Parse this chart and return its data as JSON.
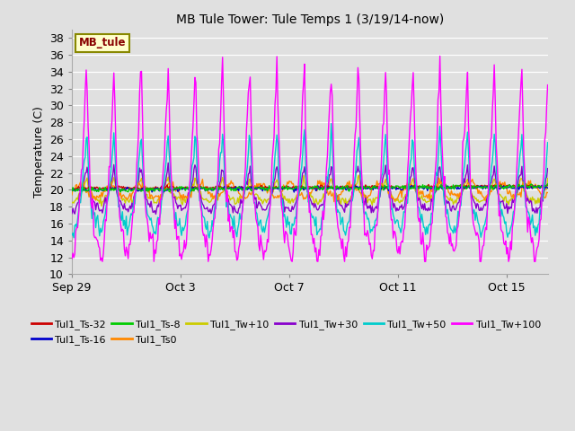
{
  "title": "MB Tule Tower: Tule Temps 1 (3/19/14-now)",
  "ylabel": "Temperature (C)",
  "background_color": "#e0e0e0",
  "ylim": [
    10,
    39
  ],
  "yticks": [
    10,
    12,
    14,
    16,
    18,
    20,
    22,
    24,
    26,
    28,
    30,
    32,
    34,
    36,
    38
  ],
  "xtick_labels": [
    "Sep 29",
    "Oct 3",
    "Oct 7",
    "Oct 11",
    "Oct 15"
  ],
  "xtick_positions": [
    0,
    4,
    8,
    12,
    16
  ],
  "xlim": [
    0,
    17.5
  ],
  "legend_labels": [
    "Tul1_Ts-32",
    "Tul1_Ts-16",
    "Tul1_Ts-8",
    "Tul1_Ts0",
    "Tul1_Tw+10",
    "Tul1_Tw+30",
    "Tul1_Tw+50",
    "Tul1_Tw+100"
  ],
  "legend_colors": [
    "#cc0000",
    "#0000cc",
    "#00cc00",
    "#ff8800",
    "#cccc00",
    "#8800cc",
    "#00cccc",
    "#ff00ff"
  ],
  "label_box_text": "MB_tule",
  "label_box_facecolor": "#ffffcc",
  "label_box_edgecolor": "#888800",
  "n_days": 17.5,
  "samples": 500
}
